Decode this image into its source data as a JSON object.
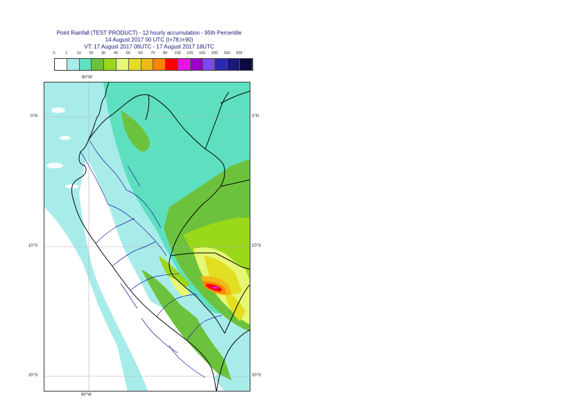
{
  "header": {
    "line1": "Point Rainfall (TEST PRODUCT) - 12 hourly accumulation - 95th Percentile",
    "line2": "14 August 2017 00 UTC (t+78,t+90)",
    "line3": "VT: 17 August 2017 06UTC - 17 August 2017 18UTC"
  },
  "legend": {
    "thresholds": [
      "0",
      "1",
      "10",
      "20",
      "30",
      "40",
      "50",
      "60",
      "70",
      "80",
      "100",
      "125",
      "150",
      "200",
      "300",
      "500"
    ],
    "colors": [
      "#ffffff",
      "#a8ecea",
      "#5ee0c0",
      "#6cc23c",
      "#9ad81a",
      "#e6f774",
      "#e2de22",
      "#f0b814",
      "#ff8400",
      "#ff0000",
      "#e815e8",
      "#9a00c8",
      "#7a4cf0",
      "#2a2ab4",
      "#1a1a78",
      "#0a0a40"
    ]
  },
  "axes": {
    "lon_top": "80°W",
    "lon_bottom": "80°W",
    "lat_0_left": "0°N",
    "lat_0_right": "0°N",
    "lat_10_left": "10°S",
    "lat_10_right": "10°S",
    "lat_20_left": "20°S",
    "lat_20_right": "20°S"
  }
}
